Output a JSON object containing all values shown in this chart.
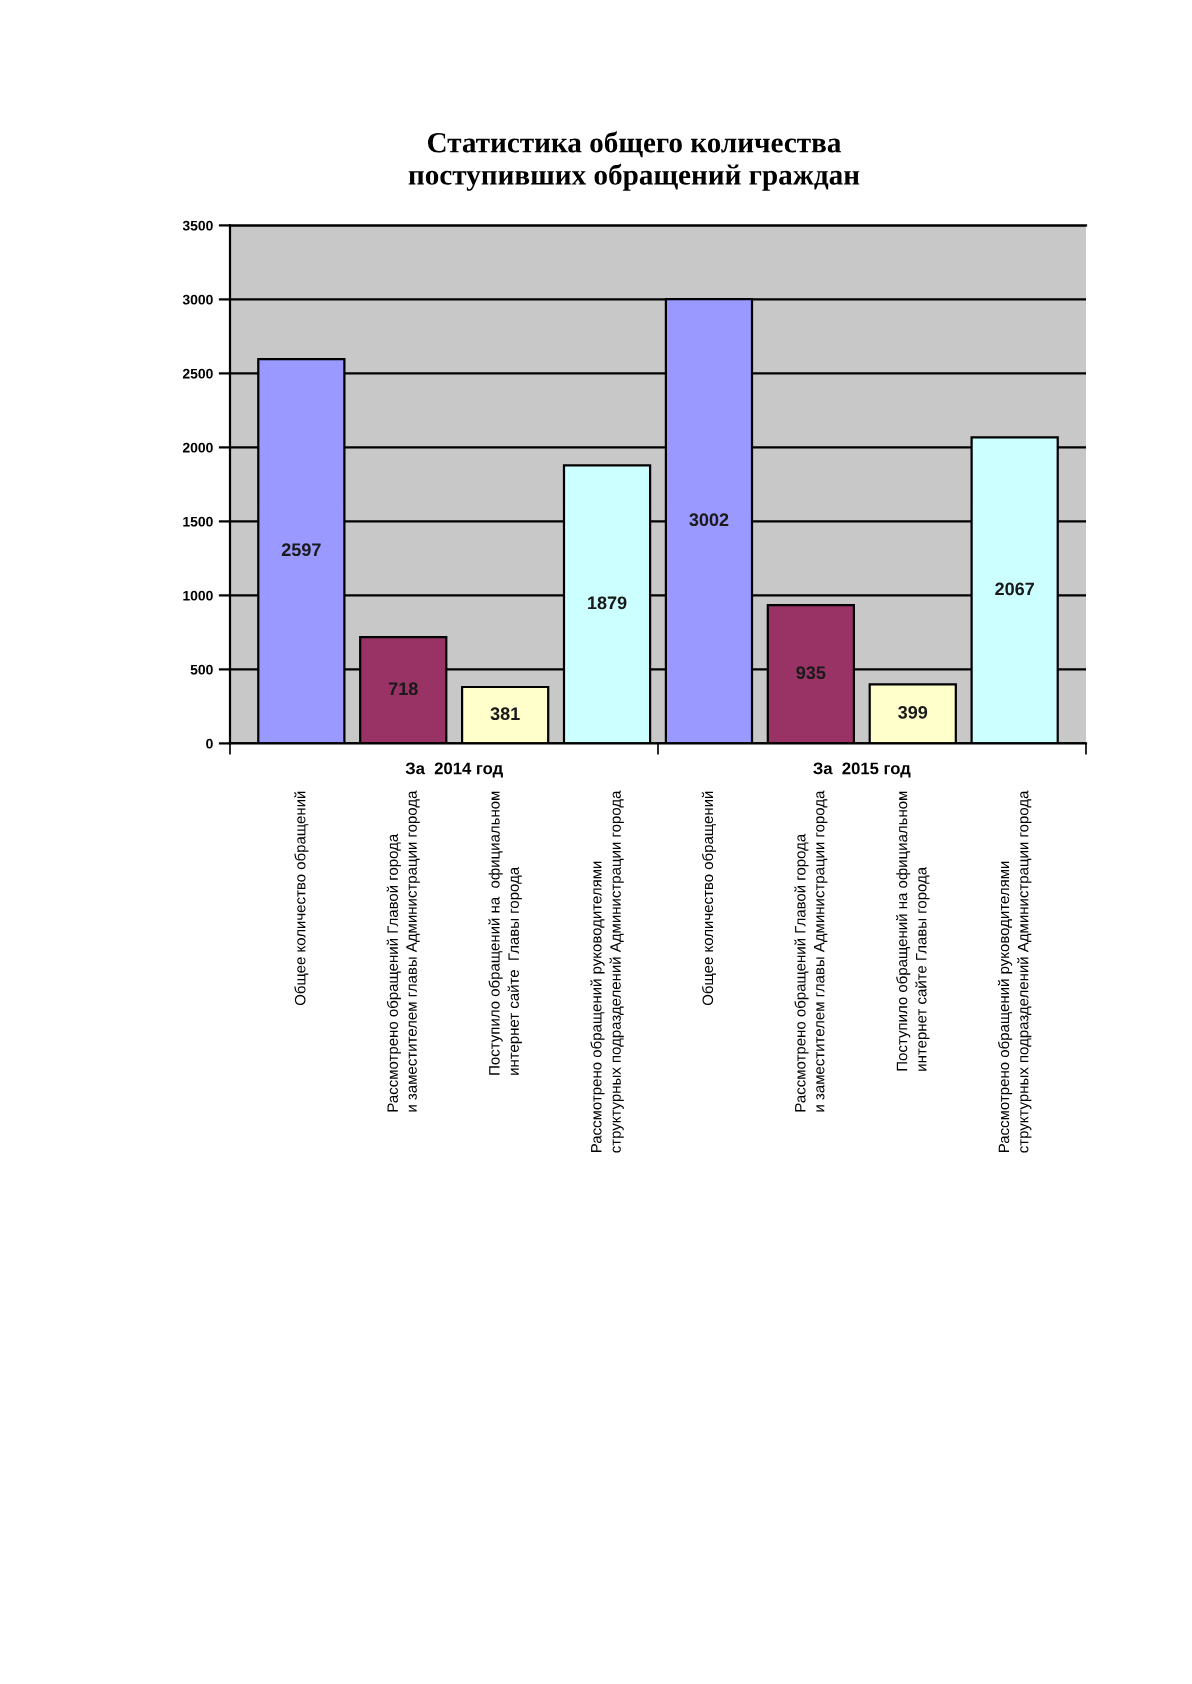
{
  "chart_data": {
    "type": "bar",
    "title": "Статистика общего количества\nпоступивших обращений граждан",
    "categories": [
      "Общее количество обращений",
      "Рассмотрено обращений Главой города\nи заместителем главы Администрации города",
      "Поступило обращений на  официальном\nинтернет сайте  Главы города",
      "Рассмотрено обращений руководителями\nструктурных подразделений Администрации города",
      "Общее количество обращений",
      "Рассмотрено обращений Главой города\nи заместителем главы Администрации города",
      "Поступило обращений на официальном\nинтернет сайте Главы города",
      "Рассмотрено обращений руководителями\nструктурных подразделений Администрации города"
    ],
    "values": [
      2597,
      718,
      381,
      1879,
      3002,
      935,
      399,
      2067
    ],
    "colors": [
      "#9999ff",
      "#993366",
      "#ffffcc",
      "#ccffff",
      "#9999ff",
      "#993366",
      "#ffffcc",
      "#ccffff"
    ],
    "data_labels": true,
    "annotations": [
      "За  2014 год",
      "За  2015 год"
    ],
    "ylim": [
      0,
      3500
    ],
    "yticks": [
      0,
      500,
      1000,
      1500,
      2000,
      2500,
      3000,
      3500
    ],
    "grid": "y"
  }
}
